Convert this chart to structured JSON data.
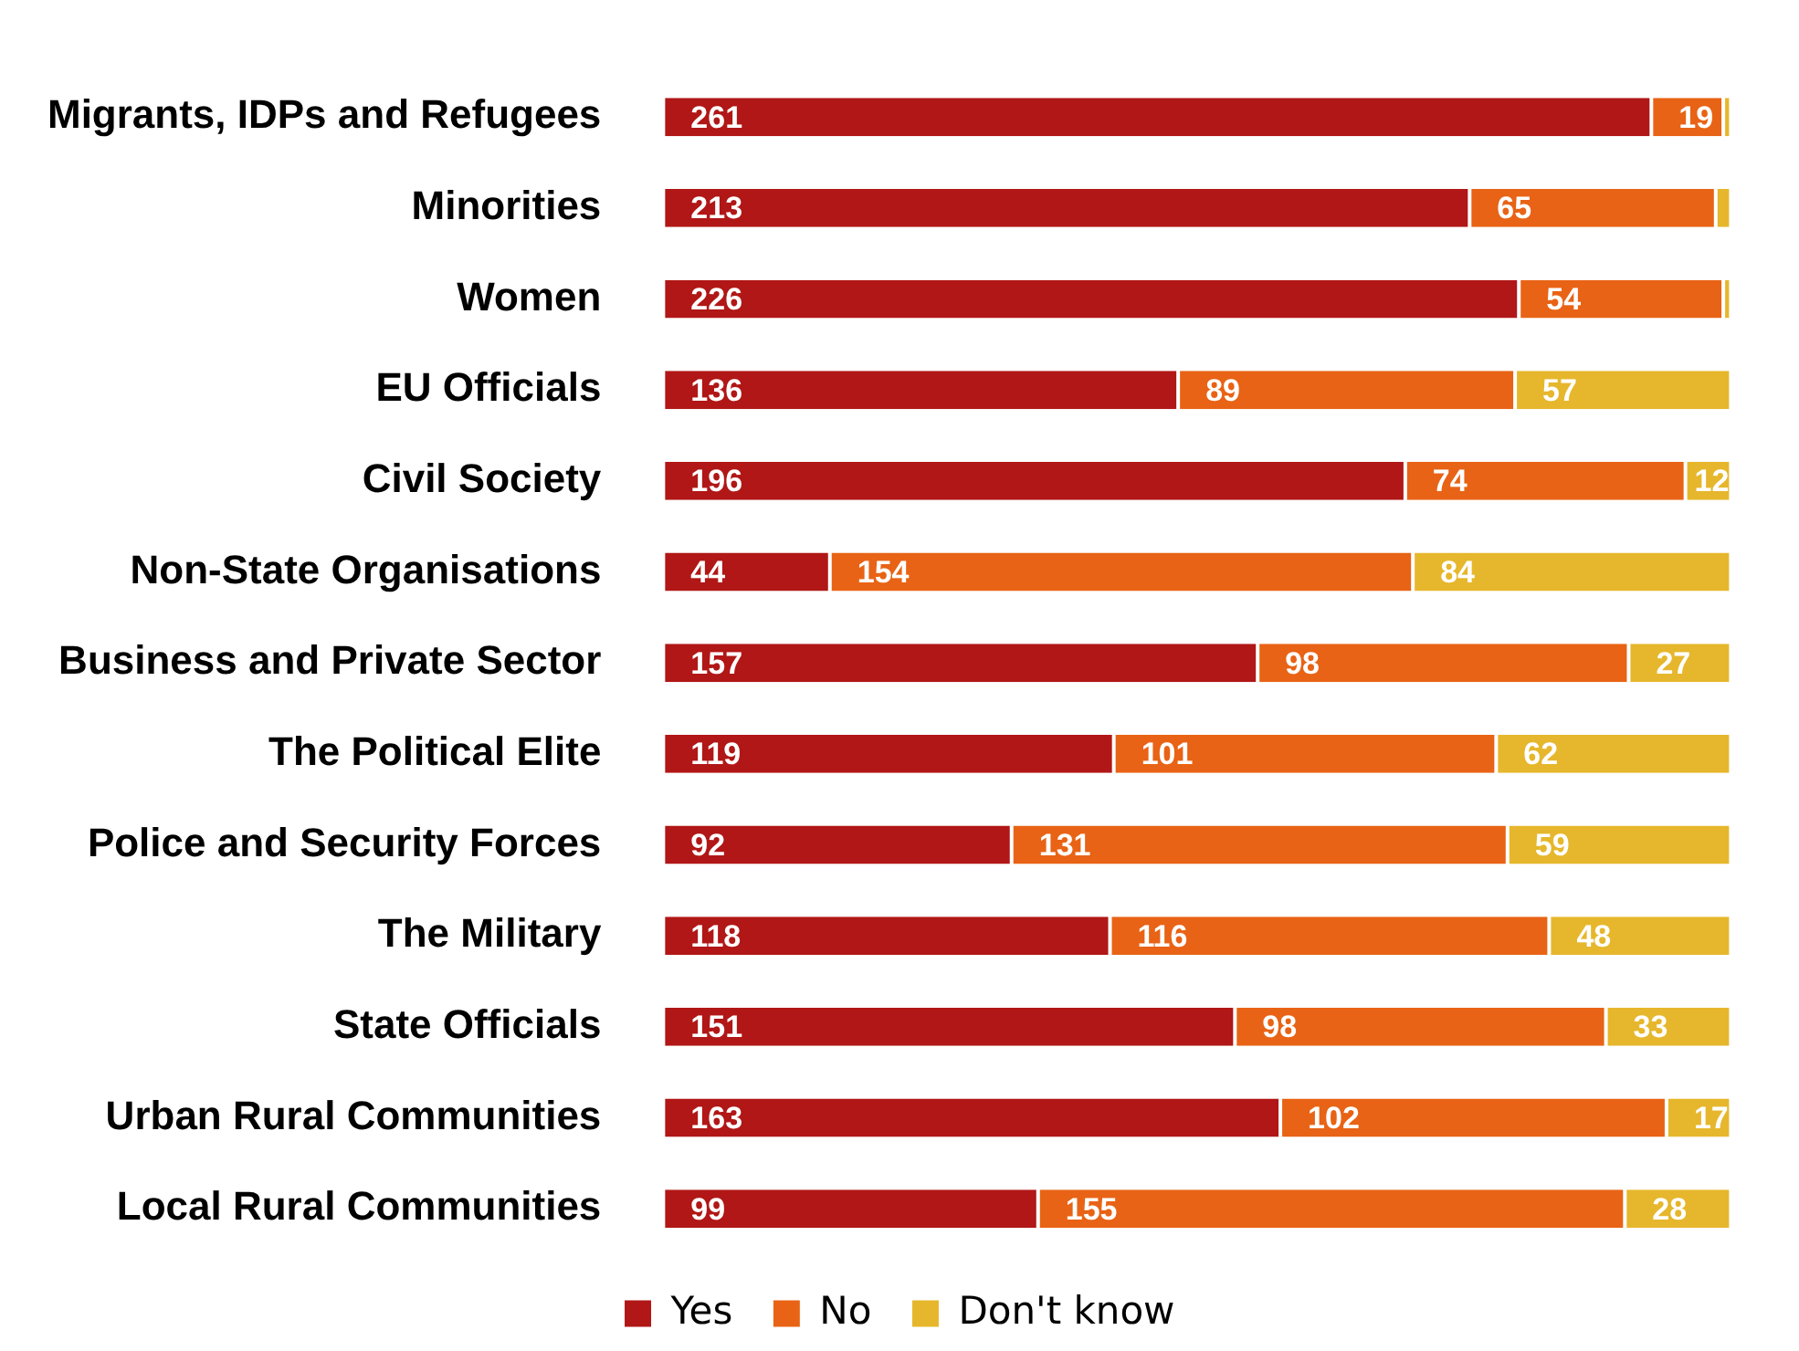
{
  "chart_data": {
    "type": "bar",
    "orientation": "horizontal",
    "stacked": true,
    "legend": "bottom",
    "tick_labels": "y",
    "grid": false,
    "categories": [
      "Migrants, IDPs and Refugees",
      "Minorities",
      "Women",
      "EU Officials",
      "Civil Society",
      "Non-State Organisations",
      "Business and Private Sector",
      "The Political Elite",
      "Police and Security Forces",
      "The Military",
      "State Officials",
      "Urban Rural Communities",
      "Local Rural Communities"
    ],
    "series": [
      {
        "name": "Yes",
        "color": "#b01716",
        "values": [
          261,
          213,
          226,
          136,
          196,
          44,
          157,
          119,
          92,
          118,
          151,
          163,
          99
        ],
        "value_labels": [
          "261",
          "213",
          "226",
          "136",
          "196",
          "44",
          "157",
          "119",
          "92",
          "118",
          "151",
          "163",
          "99"
        ]
      },
      {
        "name": "No",
        "color": "#e86315",
        "values": [
          19,
          65,
          54,
          89,
          74,
          154,
          98,
          101,
          131,
          116,
          98,
          102,
          155
        ],
        "value_labels": [
          "19",
          "65",
          "54",
          "89",
          "74",
          "154",
          "98",
          "101",
          "131",
          "116",
          "98",
          "102",
          "155"
        ]
      },
      {
        "name": "Don't know",
        "color": "#e6b72c",
        "values": [
          2,
          4,
          2,
          57,
          12,
          84,
          27,
          62,
          59,
          48,
          33,
          17,
          28
        ],
        "value_labels": [
          null,
          null,
          null,
          "57",
          "12",
          "84",
          "27",
          "62",
          "59",
          "48",
          "33",
          "17",
          "28"
        ]
      }
    ]
  }
}
